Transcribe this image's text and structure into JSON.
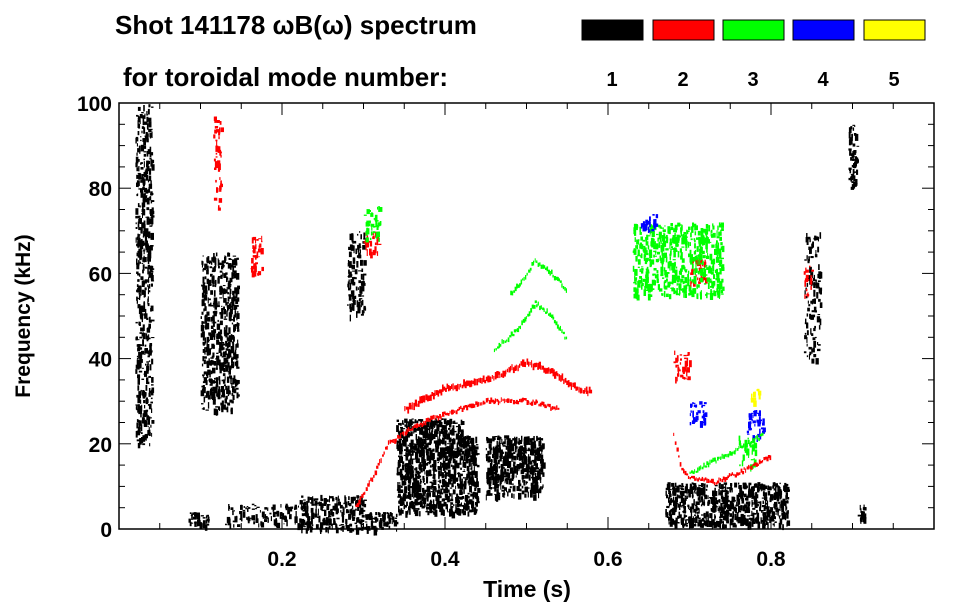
{
  "chart_data": {
    "type": "heatmap",
    "title": "Shot 141178 ωB(ω) spectrum",
    "subtitle": "for toroidal mode number:",
    "xlabel": "Time (s)",
    "ylabel": "Frequency (kHz)",
    "xlim": [
      0.0,
      1.0
    ],
    "ylim": [
      0,
      100
    ],
    "x_ticks": [
      0.2,
      0.4,
      0.6,
      0.8
    ],
    "x_tick_labels": [
      "0.2",
      "0.4",
      "0.6",
      "0.8"
    ],
    "y_ticks": [
      0,
      20,
      40,
      60,
      80,
      100
    ],
    "y_tick_labels": [
      "0",
      "20",
      "40",
      "60",
      "80",
      "100"
    ],
    "grid": false,
    "legend": {
      "placement": "top-right",
      "entries": [
        {
          "label": "1",
          "color": "#000000"
        },
        {
          "label": "2",
          "color": "#ff0000"
        },
        {
          "label": "3",
          "color": "#00ff00"
        },
        {
          "label": "4",
          "color": "#0000ff"
        },
        {
          "label": "5",
          "color": "#ffff00"
        }
      ]
    },
    "regions": [
      {
        "mode": 1,
        "time": [
          0.02,
          0.04
        ],
        "freq": [
          20,
          100
        ],
        "density": 0.55
      },
      {
        "mode": 1,
        "time": [
          0.085,
          0.11
        ],
        "freq": [
          1,
          4
        ],
        "density": 0.7
      },
      {
        "mode": 1,
        "time": [
          0.1,
          0.145
        ],
        "freq": [
          28,
          65
        ],
        "density": 0.55
      },
      {
        "mode": 1,
        "time": [
          0.13,
          0.22
        ],
        "freq": [
          1,
          6
        ],
        "density": 0.35
      },
      {
        "mode": 1,
        "time": [
          0.22,
          0.3
        ],
        "freq": [
          0,
          8
        ],
        "density": 0.6
      },
      {
        "mode": 1,
        "time": [
          0.28,
          0.3
        ],
        "freq": [
          50,
          70
        ],
        "density": 0.5
      },
      {
        "mode": 1,
        "time": [
          0.3,
          0.34
        ],
        "freq": [
          0,
          4
        ],
        "density": 0.7
      },
      {
        "mode": 1,
        "time": [
          0.34,
          0.42
        ],
        "freq": [
          4,
          26
        ],
        "density": 0.85
      },
      {
        "mode": 1,
        "time": [
          0.42,
          0.44
        ],
        "freq": [
          4,
          22
        ],
        "density": 0.8
      },
      {
        "mode": 1,
        "time": [
          0.45,
          0.52
        ],
        "freq": [
          8,
          22
        ],
        "density": 0.85
      },
      {
        "mode": 1,
        "time": [
          0.67,
          0.82
        ],
        "freq": [
          1,
          11
        ],
        "density": 0.8
      },
      {
        "mode": 1,
        "time": [
          0.84,
          0.86
        ],
        "freq": [
          40,
          70
        ],
        "density": 0.3
      },
      {
        "mode": 1,
        "time": [
          0.895,
          0.905
        ],
        "freq": [
          80,
          95
        ],
        "density": 0.6
      },
      {
        "mode": 1,
        "time": [
          0.905,
          0.915
        ],
        "freq": [
          1,
          6
        ],
        "density": 0.6
      },
      {
        "mode": 2,
        "time": [
          0.115,
          0.125
        ],
        "freq": [
          75,
          97
        ],
        "density": 0.3
      },
      {
        "mode": 2,
        "time": [
          0.16,
          0.175
        ],
        "freq": [
          60,
          70
        ],
        "density": 0.4
      },
      {
        "mode": 2,
        "time": [
          0.3,
          0.32
        ],
        "freq": [
          65,
          70
        ],
        "density": 0.4
      },
      {
        "mode": 2,
        "time": [
          0.68,
          0.7
        ],
        "freq": [
          35,
          42
        ],
        "density": 0.4
      },
      {
        "mode": 2,
        "time": [
          0.7,
          0.72
        ],
        "freq": [
          58,
          64
        ],
        "density": 0.4
      },
      {
        "mode": 2,
        "time": [
          0.84,
          0.85
        ],
        "freq": [
          55,
          62
        ],
        "density": 0.4
      },
      {
        "mode": 3,
        "time": [
          0.3,
          0.32
        ],
        "freq": [
          68,
          76
        ],
        "density": 0.4
      },
      {
        "mode": 3,
        "time": [
          0.63,
          0.74
        ],
        "freq": [
          55,
          72
        ],
        "density": 0.55
      },
      {
        "mode": 3,
        "time": [
          0.76,
          0.78
        ],
        "freq": [
          15,
          22
        ],
        "density": 0.4
      },
      {
        "mode": 4,
        "time": [
          0.7,
          0.72
        ],
        "freq": [
          25,
          30
        ],
        "density": 0.5
      },
      {
        "mode": 4,
        "time": [
          0.77,
          0.79
        ],
        "freq": [
          22,
          28
        ],
        "density": 0.5
      },
      {
        "mode": 4,
        "time": [
          0.64,
          0.66
        ],
        "freq": [
          70,
          74
        ],
        "density": 0.5
      },
      {
        "mode": 5,
        "time": [
          0.775,
          0.785
        ],
        "freq": [
          30,
          33
        ],
        "density": 0.5
      }
    ],
    "tracks": [
      {
        "mode": 2,
        "points": [
          [
            0.29,
            5
          ],
          [
            0.31,
            12
          ],
          [
            0.33,
            20
          ],
          [
            0.36,
            24
          ],
          [
            0.4,
            27
          ],
          [
            0.45,
            30
          ],
          [
            0.5,
            30
          ],
          [
            0.54,
            28
          ]
        ],
        "width": 2
      },
      {
        "mode": 2,
        "points": [
          [
            0.35,
            28
          ],
          [
            0.4,
            33
          ],
          [
            0.45,
            35
          ],
          [
            0.5,
            39
          ],
          [
            0.53,
            37
          ],
          [
            0.56,
            33
          ],
          [
            0.58,
            32
          ]
        ],
        "width": 3
      },
      {
        "mode": 3,
        "points": [
          [
            0.46,
            42
          ],
          [
            0.49,
            47
          ],
          [
            0.51,
            53
          ],
          [
            0.53,
            50
          ],
          [
            0.55,
            44
          ]
        ],
        "width": 2
      },
      {
        "mode": 3,
        "points": [
          [
            0.48,
            55
          ],
          [
            0.5,
            60
          ],
          [
            0.51,
            63
          ],
          [
            0.53,
            60
          ],
          [
            0.55,
            56
          ]
        ],
        "width": 2
      },
      {
        "mode": 2,
        "points": [
          [
            0.68,
            22
          ],
          [
            0.69,
            14
          ],
          [
            0.7,
            12
          ],
          [
            0.73,
            11
          ],
          [
            0.77,
            14
          ],
          [
            0.8,
            17
          ]
        ],
        "width": 2
      },
      {
        "mode": 3,
        "points": [
          [
            0.7,
            13
          ],
          [
            0.73,
            16
          ],
          [
            0.76,
            19
          ],
          [
            0.79,
            22
          ]
        ],
        "width": 2
      }
    ]
  }
}
